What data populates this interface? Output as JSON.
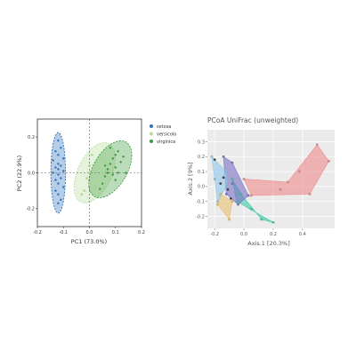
{
  "chart_data": [
    {
      "type": "scatter",
      "title": "",
      "xlabel": "PC1 (73.0%)",
      "ylabel": "PC2 (22.9%)",
      "xlim": [
        -0.2,
        0.2
      ],
      "ylim": [
        -0.3,
        0.3
      ],
      "xticks": [
        "-0.2",
        "-0.1",
        "0.0",
        "0.1",
        "0.2"
      ],
      "yticks": [
        "-0.2",
        "0.0",
        "0.2"
      ],
      "grid": false,
      "reference_lines": "dashed at x=0 and y=0",
      "legend_position": "right",
      "series": [
        {
          "name": "setosa",
          "color": "#2c6fb7",
          "ellipse": {
            "cx": -0.12,
            "cy": 0.0,
            "rx": 0.028,
            "ry": 0.225,
            "angle_deg": 0
          },
          "points": [
            [
              -0.12,
              0.18
            ],
            [
              -0.11,
              0.14
            ],
            [
              -0.13,
              0.12
            ],
            [
              -0.12,
              0.1
            ],
            [
              -0.1,
              0.08
            ],
            [
              -0.14,
              0.07
            ],
            [
              -0.12,
              0.05
            ],
            [
              -0.11,
              0.04
            ],
            [
              -0.13,
              0.03
            ],
            [
              -0.12,
              0.02
            ],
            [
              -0.1,
              0.01
            ],
            [
              -0.14,
              0.0
            ],
            [
              -0.12,
              -0.01
            ],
            [
              -0.11,
              -0.03
            ],
            [
              -0.13,
              -0.04
            ],
            [
              -0.12,
              -0.06
            ],
            [
              -0.1,
              -0.08
            ],
            [
              -0.13,
              -0.1
            ],
            [
              -0.12,
              -0.12
            ],
            [
              -0.11,
              -0.15
            ],
            [
              -0.12,
              -0.17
            ]
          ]
        },
        {
          "name": "versicolo",
          "color": "#b8dd9a",
          "ellipse": {
            "cx": 0.02,
            "cy": 0.0,
            "rx": 0.065,
            "ry": 0.18,
            "angle_deg": 25
          },
          "points": [
            [
              -0.02,
              -0.1
            ],
            [
              0.0,
              -0.06
            ],
            [
              0.01,
              -0.02
            ],
            [
              0.02,
              0.02
            ],
            [
              0.03,
              0.05
            ],
            [
              0.0,
              0.04
            ],
            [
              -0.01,
              -0.03
            ],
            [
              0.04,
              0.08
            ],
            [
              0.02,
              -0.08
            ],
            [
              0.05,
              0.0
            ],
            [
              0.01,
              0.1
            ],
            [
              0.03,
              -0.04
            ],
            [
              -0.03,
              -0.12
            ],
            [
              0.06,
              0.06
            ],
            [
              0.0,
              0.0
            ]
          ]
        },
        {
          "name": "virginica",
          "color": "#3a9a3a",
          "ellipse": {
            "cx": 0.08,
            "cy": 0.02,
            "rx": 0.065,
            "ry": 0.175,
            "angle_deg": 30
          },
          "points": [
            [
              0.05,
              -0.06
            ],
            [
              0.06,
              -0.02
            ],
            [
              0.07,
              0.02
            ],
            [
              0.08,
              0.05
            ],
            [
              0.09,
              0.08
            ],
            [
              0.1,
              0.1
            ],
            [
              0.11,
              0.12
            ],
            [
              0.07,
              0.0
            ],
            [
              0.1,
              0.03
            ],
            [
              0.12,
              0.06
            ],
            [
              0.06,
              0.04
            ],
            [
              0.09,
              -0.01
            ],
            [
              0.13,
              0.09
            ],
            [
              0.08,
              0.14
            ],
            [
              0.04,
              -0.09
            ],
            [
              0.11,
              0.0
            ],
            [
              0.14,
              0.0
            ],
            [
              0.1,
              -0.04
            ]
          ]
        }
      ]
    },
    {
      "type": "scatter",
      "title": "PCoA UniFrac (unweighted)",
      "xlabel": "Axis.1 [20.3%]",
      "ylabel": "Axis.2 [9%]",
      "xlim": [
        -0.25,
        0.62
      ],
      "ylim": [
        -0.28,
        0.38
      ],
      "xticks": [
        "-0.2",
        "0.0",
        "0.2",
        "0.4"
      ],
      "yticks": [
        "-0.2",
        "-0.1",
        "0.0",
        "0.1",
        "0.2",
        "0.3"
      ],
      "grid": true,
      "background": "#ebebeb",
      "groups": [
        {
          "color": "#f08a8a",
          "hull": [
            [
              0.3,
              0.03
            ],
            [
              0.5,
              0.28
            ],
            [
              0.58,
              0.17
            ],
            [
              0.45,
              -0.05
            ],
            [
              0.05,
              -0.06
            ],
            [
              0.0,
              0.05
            ]
          ],
          "points": [
            [
              0.3,
              0.03
            ],
            [
              0.5,
              0.28
            ],
            [
              0.58,
              0.17
            ],
            [
              0.45,
              -0.05
            ],
            [
              0.05,
              -0.06
            ],
            [
              0.0,
              0.05
            ],
            [
              0.38,
              0.1
            ],
            [
              0.25,
              -0.02
            ]
          ]
        },
        {
          "color": "#3cc8a6",
          "hull": [
            [
              -0.08,
              0.05
            ],
            [
              -0.02,
              -0.05
            ],
            [
              0.12,
              -0.22
            ],
            [
              0.2,
              -0.24
            ],
            [
              -0.05,
              -0.1
            ]
          ],
          "points": [
            [
              -0.08,
              0.05
            ],
            [
              -0.02,
              -0.05
            ],
            [
              0.12,
              -0.22
            ],
            [
              0.2,
              -0.24
            ],
            [
              -0.05,
              -0.1
            ],
            [
              0.05,
              -0.15
            ]
          ]
        },
        {
          "color": "#7a6fc4",
          "hull": [
            [
              -0.14,
              0.2
            ],
            [
              -0.08,
              0.16
            ],
            [
              0.03,
              -0.06
            ],
            [
              -0.04,
              -0.12
            ],
            [
              -0.12,
              -0.05
            ]
          ],
          "points": [
            [
              -0.14,
              0.2
            ],
            [
              -0.08,
              0.16
            ],
            [
              0.03,
              -0.06
            ],
            [
              -0.04,
              -0.12
            ],
            [
              -0.12,
              -0.05
            ],
            [
              -0.08,
              0.02
            ]
          ]
        },
        {
          "color": "#e8c070",
          "hull": [
            [
              -0.16,
              -0.05
            ],
            [
              -0.08,
              -0.1
            ],
            [
              -0.1,
              -0.22
            ],
            [
              -0.18,
              -0.12
            ]
          ],
          "points": [
            [
              -0.16,
              -0.05
            ],
            [
              -0.08,
              -0.1
            ],
            [
              -0.1,
              -0.22
            ],
            [
              -0.18,
              -0.12
            ]
          ]
        },
        {
          "color": "#8fc6e8",
          "hull": [
            [
              -0.22,
              0.2
            ],
            [
              -0.12,
              0.1
            ],
            [
              -0.12,
              0.0
            ],
            [
              -0.18,
              -0.1
            ],
            [
              -0.2,
              0.05
            ]
          ],
          "points": [
            [
              -0.22,
              0.2
            ],
            [
              -0.12,
              0.1
            ],
            [
              -0.12,
              0.0
            ],
            [
              -0.18,
              -0.1
            ],
            [
              -0.2,
              0.05
            ]
          ]
        },
        {
          "color": "#3a3a3a",
          "hull": [],
          "points": [
            [
              -0.2,
              0.18
            ],
            [
              -0.14,
              0.06
            ],
            [
              -0.11,
              -0.02
            ],
            [
              -0.16,
              0.02
            ],
            [
              -0.09,
              -0.08
            ]
          ]
        }
      ]
    }
  ]
}
